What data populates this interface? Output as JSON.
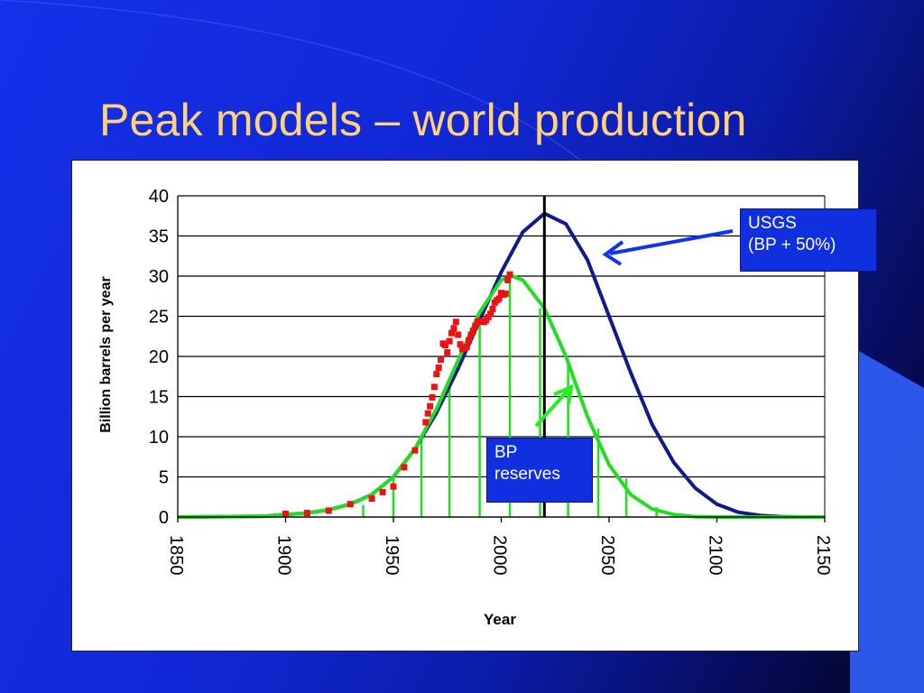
{
  "slide": {
    "title": "Peak models – world production",
    "accent_color": "#ffd27a",
    "background_color": "#1228d6"
  },
  "callouts": {
    "usgs": {
      "line1": "USGS",
      "line2": "(BP + 50%)"
    },
    "bp": {
      "line1": "BP",
      "line2": "reserves"
    }
  },
  "chart_data": {
    "type": "line",
    "title": "",
    "xlabel": "Year",
    "ylabel": "Billion barrels per year",
    "xlim": [
      1850,
      2150
    ],
    "ylim": [
      0,
      40
    ],
    "xticks": [
      1850,
      1900,
      1950,
      2000,
      2050,
      2100,
      2150
    ],
    "yticks": [
      0,
      5,
      10,
      15,
      20,
      25,
      30,
      35,
      40
    ],
    "grid": "horizontal",
    "legend": "none",
    "marker_line": {
      "x": 2020,
      "description": "vertical reference line at projected peak"
    },
    "series": [
      {
        "color": "#101a8a",
        "style": "line",
        "x": [
          1850,
          1890,
          1900,
          1910,
          1920,
          1930,
          1940,
          1950,
          1960,
          1970,
          1980,
          1990,
          2000,
          2010,
          2020,
          2030,
          2040,
          2050,
          2060,
          2070,
          2080,
          2090,
          2100,
          2110,
          2120,
          2130,
          2140,
          2150
        ],
        "y": [
          0,
          0.1,
          0.3,
          0.5,
          0.9,
          1.6,
          2.8,
          5,
          8.5,
          13,
          18.5,
          24.5,
          30.5,
          35.5,
          37.8,
          36.5,
          32,
          25,
          18,
          11.5,
          6.8,
          3.6,
          1.6,
          0.6,
          0.2,
          0.05,
          0,
          0
        ]
      },
      {
        "color": "#22dd22",
        "style": "line",
        "x": [
          1850,
          1890,
          1900,
          1910,
          1920,
          1930,
          1940,
          1950,
          1960,
          1970,
          1980,
          1990,
          2000,
          2005,
          2010,
          2020,
          2030,
          2040,
          2050,
          2060,
          2070,
          2080,
          2090,
          2100,
          2110,
          2150
        ],
        "y": [
          0,
          0.1,
          0.3,
          0.5,
          0.9,
          1.6,
          2.8,
          5,
          8.5,
          13.5,
          19.5,
          25.5,
          29.5,
          30,
          29.5,
          26,
          20,
          12.5,
          6.5,
          2.8,
          1,
          0.3,
          0.05,
          0,
          0,
          0
        ]
      },
      {
        "color": "#22dd22",
        "style": "stems",
        "x": [
          1936,
          1950,
          1963,
          1976,
          1990,
          2004,
          2018,
          2031,
          2045,
          2058,
          2072
        ],
        "y": [
          1.5,
          5,
          10,
          16.5,
          25,
          30,
          26,
          19,
          11,
          4.8,
          1.2
        ]
      },
      {
        "color": "#ee1111",
        "style": "markers",
        "x": [
          1900,
          1910,
          1920,
          1930,
          1940,
          1945,
          1950,
          1955,
          1960,
          1965,
          1966,
          1967,
          1968,
          1969,
          1970,
          1971,
          1972,
          1973,
          1974,
          1975,
          1976,
          1977,
          1978,
          1979,
          1980,
          1981,
          1982,
          1983,
          1984,
          1985,
          1986,
          1987,
          1988,
          1989,
          1990,
          1991,
          1992,
          1993,
          1994,
          1995,
          1996,
          1997,
          1998,
          1999,
          2000,
          2001,
          2002,
          2003,
          2004
        ],
        "y": [
          0.4,
          0.5,
          0.8,
          1.6,
          2.3,
          3.1,
          3.8,
          6.2,
          8.3,
          11.8,
          12.9,
          13.8,
          14.9,
          16.2,
          17.8,
          18.6,
          19.6,
          21.6,
          21.4,
          20.5,
          21.9,
          22.9,
          23.5,
          24.3,
          22.7,
          21.5,
          20.9,
          21,
          21.2,
          22,
          22.7,
          23.2,
          23.8,
          24.3,
          24.4,
          24.3,
          24.3,
          24.5,
          24.9,
          25.3,
          25.9,
          26.7,
          27,
          27.2,
          27.9,
          27.7,
          27.8,
          29.5,
          30.2
        ]
      }
    ]
  }
}
